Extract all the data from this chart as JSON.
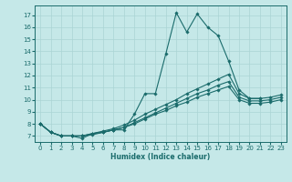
{
  "xlabel": "Humidex (Indice chaleur)",
  "xlim": [
    -0.5,
    23.5
  ],
  "ylim": [
    6.5,
    17.8
  ],
  "xticks": [
    0,
    1,
    2,
    3,
    4,
    5,
    6,
    7,
    8,
    9,
    10,
    11,
    12,
    13,
    14,
    15,
    16,
    17,
    18,
    19,
    20,
    21,
    22,
    23
  ],
  "yticks": [
    7,
    8,
    9,
    10,
    11,
    12,
    13,
    14,
    15,
    16,
    17
  ],
  "bg_color": "#c5e8e8",
  "line_color": "#1a6b6b",
  "grid_color": "#aad4d4",
  "line1_x": [
    0,
    1,
    2,
    3,
    4,
    5,
    6,
    7,
    8,
    9,
    10,
    11,
    12,
    13,
    14,
    15,
    16,
    17,
    18,
    19,
    20,
    21
  ],
  "line1_y": [
    8.0,
    7.3,
    7.0,
    7.0,
    6.8,
    7.2,
    7.3,
    7.5,
    7.5,
    8.8,
    10.5,
    10.5,
    13.8,
    17.2,
    15.6,
    17.1,
    16.0,
    15.3,
    13.2,
    10.8,
    10.1,
    10.1
  ],
  "line2_x": [
    0,
    1,
    2,
    3,
    4,
    5,
    6,
    7,
    8,
    9,
    10,
    11,
    12,
    13,
    14,
    15,
    16,
    17,
    18,
    19,
    20,
    21,
    22,
    23
  ],
  "line2_y": [
    8.0,
    7.3,
    7.0,
    7.0,
    7.0,
    7.2,
    7.4,
    7.6,
    7.9,
    8.3,
    8.8,
    9.2,
    9.6,
    10.0,
    10.5,
    10.9,
    11.3,
    11.7,
    12.1,
    10.5,
    10.1,
    10.1,
    10.2,
    10.4
  ],
  "line3_x": [
    0,
    1,
    2,
    3,
    4,
    5,
    6,
    7,
    8,
    9,
    10,
    11,
    12,
    13,
    14,
    15,
    16,
    17,
    18,
    19,
    20,
    21,
    22,
    23
  ],
  "line3_y": [
    8.0,
    7.3,
    7.0,
    7.0,
    7.0,
    7.2,
    7.3,
    7.5,
    7.7,
    8.1,
    8.5,
    8.9,
    9.3,
    9.7,
    10.1,
    10.5,
    10.8,
    11.2,
    11.5,
    10.2,
    9.9,
    9.9,
    10.0,
    10.2
  ],
  "line4_x": [
    0,
    1,
    2,
    3,
    4,
    5,
    6,
    7,
    8,
    9,
    10,
    11,
    12,
    13,
    14,
    15,
    16,
    17,
    18,
    19,
    20,
    21,
    22,
    23
  ],
  "line4_y": [
    8.0,
    7.3,
    7.0,
    7.0,
    7.0,
    7.1,
    7.3,
    7.5,
    7.7,
    8.0,
    8.4,
    8.8,
    9.1,
    9.5,
    9.8,
    10.2,
    10.5,
    10.8,
    11.1,
    10.0,
    9.7,
    9.7,
    9.8,
    10.0
  ]
}
